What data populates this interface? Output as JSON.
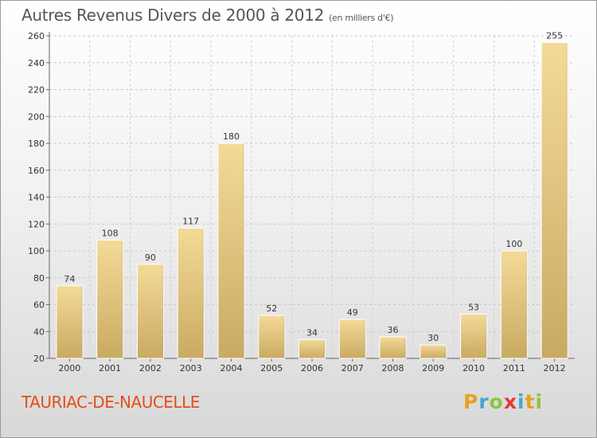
{
  "header": {
    "title": "Autres Revenus Divers de 2000 à 2012",
    "subtitle": "(en milliers d'€)"
  },
  "footer": {
    "commune": "TAURIAC-DE-NAUCELLE",
    "logo": [
      "P",
      "r",
      "o",
      "x",
      "i",
      "t",
      "i"
    ],
    "logo_colors": [
      "#e8a020",
      "#4aa3d8",
      "#8cc63f",
      "#e53935",
      "#4aa3d8",
      "#e8a020",
      "#8cc63f"
    ]
  },
  "chart_data": {
    "type": "bar",
    "categories": [
      "2000",
      "2001",
      "2002",
      "2003",
      "2004",
      "2005",
      "2006",
      "2007",
      "2008",
      "2009",
      "2010",
      "2011",
      "2012"
    ],
    "values": [
      74,
      108,
      90,
      117,
      180,
      52,
      34,
      49,
      36,
      30,
      53,
      100,
      255
    ],
    "ylim": [
      20,
      260
    ],
    "yticks": [
      20,
      40,
      60,
      80,
      100,
      120,
      140,
      160,
      180,
      200,
      220,
      240,
      260
    ],
    "grid": true,
    "bar_color": "#e3c27a"
  }
}
